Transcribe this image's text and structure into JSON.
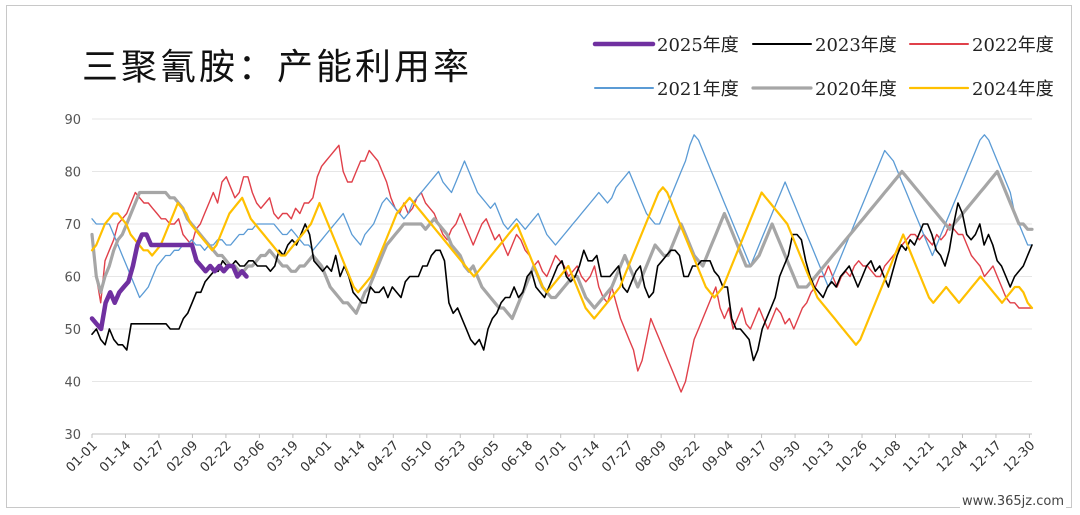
{
  "chart_data": {
    "type": "line",
    "title": "三聚氰胺：产能利用率",
    "ylim": [
      30,
      90
    ],
    "yticks": [
      30,
      40,
      50,
      60,
      70,
      80,
      90
    ],
    "xtick_labels": [
      "01-01",
      "01-14",
      "01-27",
      "02-09",
      "02-22",
      "03-06",
      "03-19",
      "04-01",
      "04-14",
      "04-27",
      "05-10",
      "05-23",
      "06-05",
      "06-18",
      "07-01",
      "07-14",
      "07-27",
      "08-09",
      "08-22",
      "09-04",
      "09-17",
      "09-30",
      "10-13",
      "10-26",
      "11-08",
      "11-21",
      "12-04",
      "12-17",
      "12-30"
    ],
    "grid": "horizontal",
    "legend_placement": "top-right",
    "series": [
      {
        "name": "2025年度",
        "color": "#7030a0",
        "width": 4.5,
        "values": [
          52,
          51,
          50,
          55,
          57,
          55,
          57,
          58,
          59,
          62,
          66,
          68,
          68,
          66,
          66,
          66,
          66,
          66,
          66,
          66,
          66,
          66,
          66,
          63,
          62,
          61,
          62,
          61,
          62,
          61,
          62,
          62,
          60,
          61,
          60
        ]
      },
      {
        "name": "2023年度",
        "color": "#000000",
        "width": 1.6,
        "values": [
          49,
          50,
          48,
          47,
          50,
          48,
          47,
          47,
          46,
          51,
          51,
          51,
          51,
          51,
          51,
          51,
          51,
          51,
          50,
          50,
          50,
          52,
          53,
          55,
          57,
          57,
          59,
          60,
          61,
          61,
          63,
          62,
          62,
          63,
          62,
          62,
          63,
          63,
          62,
          62,
          62,
          61,
          62,
          65,
          64,
          66,
          67,
          66,
          68,
          70,
          68,
          63,
          62,
          61,
          62,
          61,
          64,
          60,
          62,
          60,
          57,
          56,
          55,
          55,
          58,
          57,
          57,
          58,
          56,
          58,
          57,
          56,
          59,
          60,
          60,
          60,
          62,
          62,
          64,
          65,
          65,
          63,
          55,
          53,
          54,
          52,
          50,
          48,
          47,
          48,
          46,
          50,
          52,
          53,
          55,
          56,
          56,
          58,
          56,
          57,
          60,
          61,
          58,
          57,
          56,
          58,
          60,
          62,
          63,
          60,
          59,
          60,
          62,
          65,
          63,
          63,
          64,
          60,
          60,
          60,
          61,
          62,
          58,
          57,
          59,
          61,
          62,
          58,
          56,
          57,
          62,
          63,
          64,
          65,
          65,
          64,
          60,
          60,
          62,
          62,
          63,
          63,
          63,
          61,
          60,
          58,
          58,
          52,
          50,
          50,
          49,
          48,
          44,
          46,
          50,
          52,
          54,
          56,
          60,
          62,
          64,
          68,
          68,
          67,
          63,
          60,
          58,
          57,
          56,
          58,
          59,
          58,
          60,
          61,
          62,
          60,
          58,
          60,
          62,
          63,
          61,
          62,
          60,
          58,
          61,
          64,
          66,
          65,
          67,
          66,
          68,
          70,
          70,
          68,
          65,
          64,
          62,
          65,
          70,
          74,
          72,
          68,
          67,
          68,
          70,
          66,
          68,
          66,
          63,
          62,
          60,
          58,
          60,
          61,
          62,
          64,
          66
        ]
      },
      {
        "name": "2022年度",
        "color": "#e0404a",
        "width": 1.4,
        "values": [
          67,
          60,
          55,
          63,
          65,
          67,
          70,
          71,
          72,
          74,
          76,
          75,
          74,
          74,
          73,
          72,
          71,
          71,
          70,
          70,
          71,
          68,
          67,
          66,
          69,
          70,
          72,
          74,
          76,
          74,
          78,
          79,
          77,
          75,
          76,
          79,
          79,
          76,
          74,
          73,
          74,
          75,
          72,
          71,
          72,
          72,
          71,
          73,
          72,
          74,
          74,
          75,
          79,
          81,
          82,
          83,
          84,
          85,
          80,
          78,
          78,
          80,
          82,
          82,
          84,
          83,
          82,
          80,
          78,
          75,
          73,
          72,
          74,
          72,
          73,
          75,
          76,
          74,
          73,
          72,
          70,
          68,
          67,
          69,
          70,
          72,
          70,
          68,
          66,
          68,
          70,
          71,
          69,
          67,
          68,
          66,
          64,
          66,
          68,
          67,
          65,
          64,
          62,
          63,
          61,
          60,
          62,
          64,
          63,
          62,
          60,
          61,
          62,
          60,
          59,
          60,
          62,
          58,
          56,
          55,
          58,
          55,
          52,
          50,
          48,
          46,
          42,
          44,
          48,
          52,
          50,
          48,
          46,
          44,
          42,
          40,
          38,
          40,
          44,
          48,
          50,
          52,
          54,
          56,
          58,
          54,
          52,
          54,
          50,
          52,
          54,
          51,
          50,
          52,
          54,
          52,
          50,
          52,
          54,
          53,
          51,
          52,
          50,
          52,
          54,
          55,
          57,
          58,
          60,
          60,
          62,
          60,
          58,
          60,
          61,
          60,
          62,
          63,
          62,
          62,
          61,
          60,
          60,
          62,
          63,
          64,
          65,
          66,
          67,
          68,
          68,
          67,
          68,
          67,
          66,
          68,
          67,
          68,
          70,
          69,
          68,
          68,
          66,
          64,
          63,
          62,
          60,
          61,
          62,
          60,
          58,
          56,
          55,
          55,
          54,
          54,
          54,
          54
        ]
      },
      {
        "name": "2021年度",
        "color": "#5b9bd5",
        "width": 1.3,
        "values": [
          71,
          70,
          70,
          70,
          70,
          68,
          66,
          64,
          62,
          60,
          58,
          56,
          57,
          58,
          60,
          62,
          63,
          64,
          64,
          65,
          65,
          66,
          66,
          67,
          66,
          66,
          65,
          66,
          66,
          67,
          67,
          66,
          66,
          67,
          68,
          68,
          69,
          69,
          70,
          70,
          70,
          70,
          70,
          69,
          68,
          68,
          69,
          68,
          67,
          66,
          66,
          65,
          66,
          67,
          68,
          69,
          70,
          71,
          72,
          70,
          68,
          67,
          66,
          68,
          69,
          70,
          72,
          74,
          75,
          74,
          73,
          72,
          71,
          72,
          74,
          75,
          76,
          77,
          78,
          79,
          80,
          78,
          77,
          76,
          78,
          80,
          82,
          80,
          78,
          76,
          75,
          74,
          73,
          74,
          72,
          70,
          69,
          70,
          71,
          70,
          69,
          70,
          71,
          72,
          70,
          68,
          67,
          66,
          67,
          68,
          69,
          70,
          71,
          72,
          73,
          74,
          75,
          76,
          75,
          74,
          75,
          77,
          78,
          79,
          80,
          78,
          76,
          74,
          72,
          71,
          70,
          70,
          72,
          74,
          76,
          78,
          80,
          82,
          85,
          87,
          86,
          84,
          82,
          80,
          78,
          76,
          74,
          72,
          70,
          68,
          66,
          64,
          62,
          64,
          66,
          68,
          70,
          72,
          74,
          76,
          78,
          76,
          74,
          72,
          70,
          68,
          66,
          64,
          62,
          60,
          58,
          60,
          62,
          64,
          66,
          68,
          70,
          72,
          74,
          76,
          78,
          80,
          82,
          84,
          83,
          82,
          80,
          78,
          76,
          74,
          72,
          70,
          68,
          66,
          64,
          66,
          68,
          70,
          72,
          74,
          76,
          78,
          80,
          82,
          84,
          86,
          87,
          86,
          84,
          82,
          80,
          78,
          76,
          72,
          70,
          68,
          66,
          66
        ]
      },
      {
        "name": "2020年度",
        "color": "#a6a6a6",
        "width": 3.2,
        "values": [
          68,
          60,
          57,
          60,
          62,
          65,
          67,
          68,
          70,
          72,
          74,
          76,
          76,
          76,
          76,
          76,
          76,
          76,
          75,
          75,
          74,
          73,
          71,
          70,
          69,
          68,
          67,
          66,
          65,
          64,
          64,
          63,
          62,
          62,
          61,
          61,
          62,
          62,
          63,
          64,
          64,
          65,
          64,
          63,
          62,
          62,
          61,
          61,
          62,
          62,
          63,
          64,
          63,
          62,
          60,
          58,
          57,
          56,
          55,
          55,
          54,
          53,
          55,
          57,
          58,
          60,
          62,
          64,
          66,
          67,
          68,
          69,
          70,
          70,
          70,
          70,
          70,
          69,
          70,
          71,
          70,
          69,
          68,
          66,
          65,
          64,
          62,
          61,
          62,
          60,
          58,
          57,
          56,
          55,
          54,
          54,
          53,
          52,
          54,
          56,
          58,
          60,
          62,
          60,
          58,
          57,
          56,
          56,
          57,
          58,
          59,
          60,
          60,
          58,
          56,
          55,
          54,
          55,
          56,
          57,
          58,
          60,
          62,
          64,
          62,
          60,
          58,
          60,
          62,
          64,
          66,
          65,
          64,
          64,
          66,
          68,
          70,
          68,
          66,
          64,
          63,
          62,
          64,
          66,
          68,
          70,
          72,
          70,
          68,
          66,
          64,
          62,
          62,
          63,
          64,
          66,
          68,
          70,
          68,
          66,
          64,
          62,
          60,
          58,
          58,
          58,
          59,
          60,
          61,
          62,
          63,
          64,
          65,
          66,
          67,
          68,
          69,
          70,
          71,
          72,
          73,
          74,
          75,
          76,
          77,
          78,
          79,
          80,
          79,
          78,
          77,
          76,
          75,
          74,
          73,
          72,
          71,
          70,
          69,
          70,
          71,
          72,
          73,
          74,
          75,
          76,
          77,
          78,
          79,
          80,
          78,
          76,
          74,
          72,
          70,
          70,
          69,
          69
        ]
      },
      {
        "name": "2024年度",
        "color": "#ffc000",
        "width": 2.2,
        "values": [
          65,
          66,
          68,
          70,
          71,
          72,
          72,
          71,
          70,
          68,
          67,
          66,
          65,
          65,
          64,
          65,
          66,
          68,
          70,
          72,
          74,
          73,
          72,
          70,
          69,
          68,
          67,
          66,
          65,
          66,
          68,
          70,
          72,
          73,
          74,
          75,
          73,
          71,
          70,
          69,
          68,
          67,
          66,
          65,
          64,
          64,
          65,
          66,
          67,
          68,
          69,
          70,
          72,
          74,
          72,
          70,
          68,
          66,
          64,
          62,
          60,
          58,
          57,
          58,
          59,
          60,
          62,
          64,
          66,
          68,
          70,
          72,
          73,
          74,
          75,
          74,
          73,
          72,
          71,
          70,
          69,
          68,
          67,
          66,
          65,
          64,
          63,
          62,
          61,
          60,
          61,
          62,
          63,
          64,
          65,
          66,
          67,
          68,
          69,
          70,
          68,
          66,
          64,
          62,
          60,
          58,
          57,
          58,
          59,
          60,
          61,
          62,
          60,
          58,
          56,
          54,
          53,
          52,
          53,
          54,
          55,
          56,
          57,
          58,
          60,
          62,
          64,
          66,
          68,
          70,
          72,
          74,
          76,
          77,
          76,
          74,
          72,
          70,
          68,
          66,
          64,
          62,
          60,
          58,
          57,
          56,
          57,
          58,
          60,
          62,
          64,
          66,
          68,
          70,
          72,
          74,
          76,
          75,
          74,
          73,
          72,
          71,
          70,
          68,
          66,
          64,
          62,
          60,
          58,
          56,
          55,
          54,
          53,
          52,
          51,
          50,
          49,
          48,
          47,
          48,
          50,
          52,
          54,
          56,
          58,
          60,
          62,
          64,
          66,
          68,
          66,
          64,
          62,
          60,
          58,
          56,
          55,
          56,
          57,
          58,
          57,
          56,
          55,
          56,
          57,
          58,
          59,
          60,
          59,
          58,
          57,
          56,
          55,
          56,
          57,
          58,
          58,
          57,
          55,
          54
        ]
      }
    ]
  },
  "watermark": "www.365jz.com"
}
